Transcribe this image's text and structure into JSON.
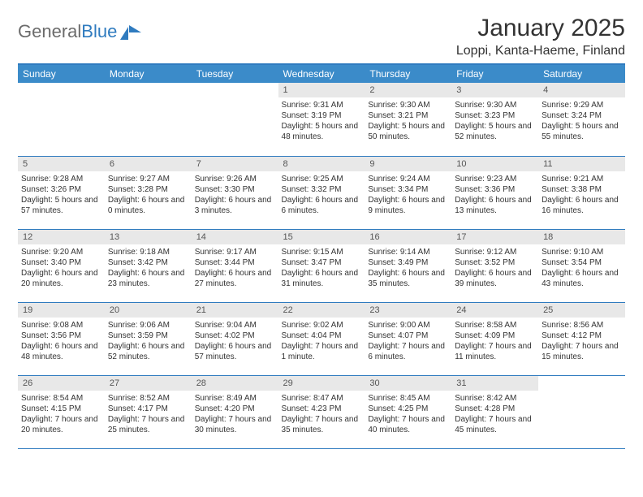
{
  "logo": {
    "text_gray": "General",
    "text_blue": "Blue"
  },
  "title": "January 2025",
  "location": "Loppi, Kanta-Haeme, Finland",
  "colors": {
    "header_bg": "#3b8bc9",
    "header_border": "#2f7bbf",
    "daynum_bg": "#e8e8e8",
    "text": "#333333",
    "logo_gray": "#6b6b6b",
    "logo_blue": "#2f7bbf"
  },
  "weekdays": [
    "Sunday",
    "Monday",
    "Tuesday",
    "Wednesday",
    "Thursday",
    "Friday",
    "Saturday"
  ],
  "grid": [
    [
      null,
      null,
      null,
      {
        "n": "1",
        "sr": "9:31 AM",
        "ss": "3:19 PM",
        "dl": "5 hours and 48 minutes."
      },
      {
        "n": "2",
        "sr": "9:30 AM",
        "ss": "3:21 PM",
        "dl": "5 hours and 50 minutes."
      },
      {
        "n": "3",
        "sr": "9:30 AM",
        "ss": "3:23 PM",
        "dl": "5 hours and 52 minutes."
      },
      {
        "n": "4",
        "sr": "9:29 AM",
        "ss": "3:24 PM",
        "dl": "5 hours and 55 minutes."
      }
    ],
    [
      {
        "n": "5",
        "sr": "9:28 AM",
        "ss": "3:26 PM",
        "dl": "5 hours and 57 minutes."
      },
      {
        "n": "6",
        "sr": "9:27 AM",
        "ss": "3:28 PM",
        "dl": "6 hours and 0 minutes."
      },
      {
        "n": "7",
        "sr": "9:26 AM",
        "ss": "3:30 PM",
        "dl": "6 hours and 3 minutes."
      },
      {
        "n": "8",
        "sr": "9:25 AM",
        "ss": "3:32 PM",
        "dl": "6 hours and 6 minutes."
      },
      {
        "n": "9",
        "sr": "9:24 AM",
        "ss": "3:34 PM",
        "dl": "6 hours and 9 minutes."
      },
      {
        "n": "10",
        "sr": "9:23 AM",
        "ss": "3:36 PM",
        "dl": "6 hours and 13 minutes."
      },
      {
        "n": "11",
        "sr": "9:21 AM",
        "ss": "3:38 PM",
        "dl": "6 hours and 16 minutes."
      }
    ],
    [
      {
        "n": "12",
        "sr": "9:20 AM",
        "ss": "3:40 PM",
        "dl": "6 hours and 20 minutes."
      },
      {
        "n": "13",
        "sr": "9:18 AM",
        "ss": "3:42 PM",
        "dl": "6 hours and 23 minutes."
      },
      {
        "n": "14",
        "sr": "9:17 AM",
        "ss": "3:44 PM",
        "dl": "6 hours and 27 minutes."
      },
      {
        "n": "15",
        "sr": "9:15 AM",
        "ss": "3:47 PM",
        "dl": "6 hours and 31 minutes."
      },
      {
        "n": "16",
        "sr": "9:14 AM",
        "ss": "3:49 PM",
        "dl": "6 hours and 35 minutes."
      },
      {
        "n": "17",
        "sr": "9:12 AM",
        "ss": "3:52 PM",
        "dl": "6 hours and 39 minutes."
      },
      {
        "n": "18",
        "sr": "9:10 AM",
        "ss": "3:54 PM",
        "dl": "6 hours and 43 minutes."
      }
    ],
    [
      {
        "n": "19",
        "sr": "9:08 AM",
        "ss": "3:56 PM",
        "dl": "6 hours and 48 minutes."
      },
      {
        "n": "20",
        "sr": "9:06 AM",
        "ss": "3:59 PM",
        "dl": "6 hours and 52 minutes."
      },
      {
        "n": "21",
        "sr": "9:04 AM",
        "ss": "4:02 PM",
        "dl": "6 hours and 57 minutes."
      },
      {
        "n": "22",
        "sr": "9:02 AM",
        "ss": "4:04 PM",
        "dl": "7 hours and 1 minute."
      },
      {
        "n": "23",
        "sr": "9:00 AM",
        "ss": "4:07 PM",
        "dl": "7 hours and 6 minutes."
      },
      {
        "n": "24",
        "sr": "8:58 AM",
        "ss": "4:09 PM",
        "dl": "7 hours and 11 minutes."
      },
      {
        "n": "25",
        "sr": "8:56 AM",
        "ss": "4:12 PM",
        "dl": "7 hours and 15 minutes."
      }
    ],
    [
      {
        "n": "26",
        "sr": "8:54 AM",
        "ss": "4:15 PM",
        "dl": "7 hours and 20 minutes."
      },
      {
        "n": "27",
        "sr": "8:52 AM",
        "ss": "4:17 PM",
        "dl": "7 hours and 25 minutes."
      },
      {
        "n": "28",
        "sr": "8:49 AM",
        "ss": "4:20 PM",
        "dl": "7 hours and 30 minutes."
      },
      {
        "n": "29",
        "sr": "8:47 AM",
        "ss": "4:23 PM",
        "dl": "7 hours and 35 minutes."
      },
      {
        "n": "30",
        "sr": "8:45 AM",
        "ss": "4:25 PM",
        "dl": "7 hours and 40 minutes."
      },
      {
        "n": "31",
        "sr": "8:42 AM",
        "ss": "4:28 PM",
        "dl": "7 hours and 45 minutes."
      },
      null
    ]
  ],
  "labels": {
    "sunrise": "Sunrise:",
    "sunset": "Sunset:",
    "daylight": "Daylight:"
  }
}
